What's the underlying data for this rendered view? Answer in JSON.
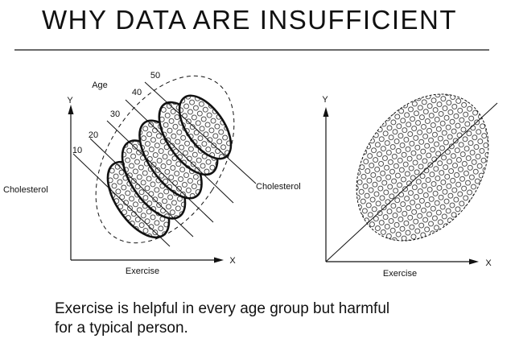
{
  "title": "WHY DATA ARE INSUFFICIENT",
  "left_chart": {
    "y_axis": "Y",
    "x_axis": "X",
    "y_label": "Cholesterol",
    "x_label": "Exercise",
    "age_label": "Age",
    "age_groups": [
      "10",
      "20",
      "30",
      "40",
      "50"
    ]
  },
  "right_chart": {
    "y_axis": "Y",
    "x_axis": "X",
    "y_label": "Cholesterol",
    "x_label": "Exercise"
  },
  "caption": {
    "line1": "Exercise is helpful in every age group but harmful",
    "line2": "for a typical person."
  }
}
